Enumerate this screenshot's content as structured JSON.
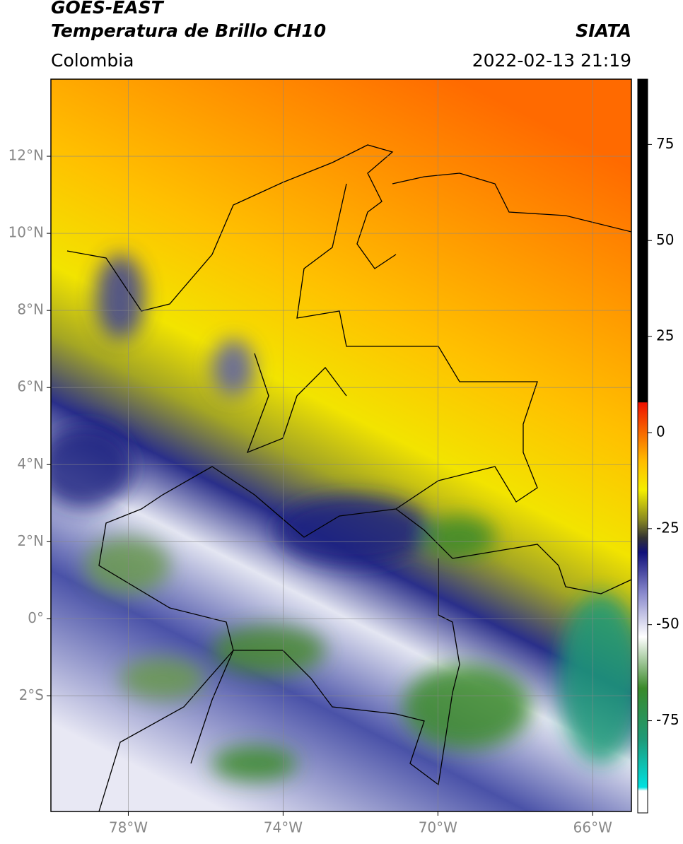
{
  "header": {
    "title": "GOES-EAST",
    "subtitle": "Temperatura de Brillo CH10",
    "region": "Colombia",
    "source": "SIATA",
    "datetime": "2022-02-13 21:19"
  },
  "map": {
    "xlim": [
      -80,
      -65
    ],
    "ylim": [
      -5,
      14
    ],
    "xticks": [
      {
        "value": -78,
        "label": "78°W"
      },
      {
        "value": -74,
        "label": "74°W"
      },
      {
        "value": -70,
        "label": "70°W"
      },
      {
        "value": -66,
        "label": "66°W"
      }
    ],
    "yticks": [
      {
        "value": 12,
        "label": "12°N"
      },
      {
        "value": 10,
        "label": "10°N"
      },
      {
        "value": 8,
        "label": "8°N"
      },
      {
        "value": 6,
        "label": "6°N"
      },
      {
        "value": 4,
        "label": "4°N"
      },
      {
        "value": 2,
        "label": "2°N"
      },
      {
        "value": 0,
        "label": "0°"
      },
      {
        "value": -2,
        "label": "2°S"
      }
    ],
    "grid": true
  },
  "colorbar": {
    "ylim": [
      -99,
      92
    ],
    "yticks": [
      75,
      50,
      25,
      0,
      -25,
      -50,
      -75
    ]
  }
}
